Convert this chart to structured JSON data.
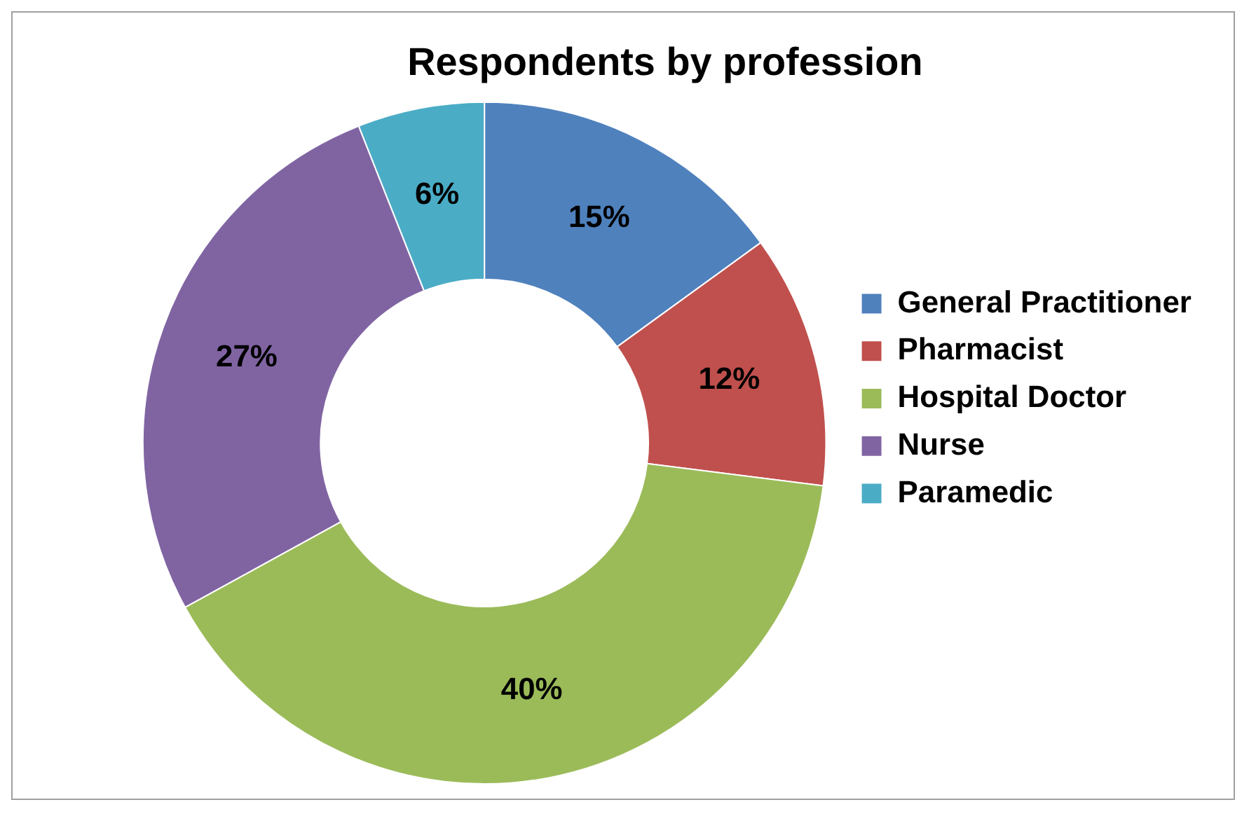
{
  "chart_data": {
    "type": "donut",
    "title": "Respondents by profession",
    "categories": [
      "General Practitioner",
      "Pharmacist",
      "Hospital Doctor",
      "Nurse",
      "Paramedic"
    ],
    "values": [
      15,
      12,
      40,
      27,
      6
    ],
    "colors": [
      "#4f81bd",
      "#c0504d",
      "#9bbb59",
      "#8064a2",
      "#4bacc6"
    ],
    "value_labels": [
      "15%",
      "12%",
      "40%",
      "27%",
      "6%"
    ],
    "legend": "right"
  }
}
